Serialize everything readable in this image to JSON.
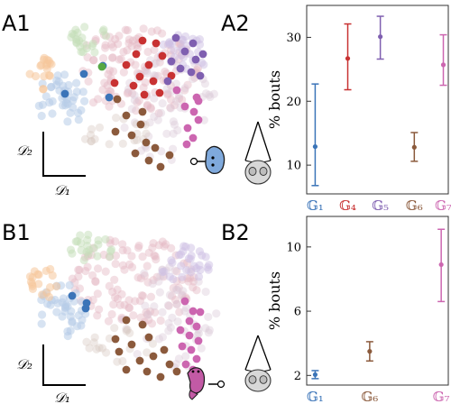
{
  "panels": {
    "a1": "A1",
    "a2": "A2",
    "b1": "B1",
    "b2": "B2"
  },
  "embedding_axes": {
    "top": {
      "y": "𝒟₂",
      "x": "𝒟₁"
    },
    "bottom": {
      "y": "𝒟₂",
      "x": "𝒟₁"
    }
  },
  "colors": {
    "G1": "#3b74b8",
    "G2": "#f5a04d",
    "G3": "#57a844",
    "G4": "#c83232",
    "G5": "#7f5fb0",
    "G6": "#8b5a3c",
    "G7": "#cc66b0",
    "background_points": "#c9c9dc"
  },
  "icons": {
    "top_scatter_icon": "larva-head-icon",
    "bottom_scatter_icon": "larva-body-icon",
    "top_chart_icon": "fish-top-view-icon",
    "bottom_chart_icon": "fish-top-view-icon"
  },
  "chart_data": [
    {
      "type": "scatter",
      "panel": "A2",
      "ylabel": "% bouts",
      "categories": [
        "𝔾₁",
        "𝔾₄",
        "𝔾₅",
        "𝔾₆",
        "𝔾₇"
      ],
      "category_colors": [
        "#3b74b8",
        "#c83232",
        "#7f5fb0",
        "#8b5a3c",
        "#cc66b0"
      ],
      "values": [
        12.9,
        26.7,
        30.1,
        12.8,
        25.7
      ],
      "err_low": [
        6.8,
        21.8,
        26.6,
        10.6,
        22.5
      ],
      "err_high": [
        22.7,
        32.1,
        33.3,
        15.1,
        30.4
      ],
      "yticks": [
        10,
        20,
        30
      ],
      "ylim": [
        5.5,
        35
      ]
    },
    {
      "type": "scatter",
      "panel": "B2",
      "ylabel": "% bouts",
      "categories": [
        "𝔾₁",
        "𝔾₆",
        "𝔾₇"
      ],
      "category_colors": [
        "#3b74b8",
        "#8b5a3c",
        "#cc66b0"
      ],
      "values": [
        2.05,
        3.5,
        8.9
      ],
      "err_low": [
        1.8,
        2.9,
        6.6
      ],
      "err_high": [
        2.3,
        4.1,
        11.1
      ],
      "yticks": [
        2,
        6,
        10
      ],
      "ylim": [
        1.4,
        11.9
      ]
    }
  ]
}
